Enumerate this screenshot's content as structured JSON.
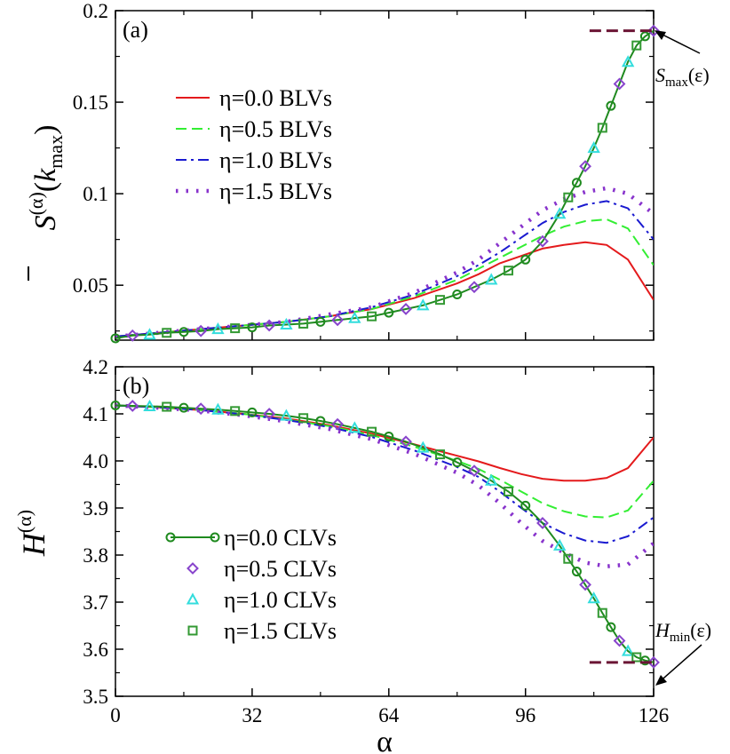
{
  "chart_data": [
    {
      "id": "a",
      "panel_label": "(a)",
      "type": "line",
      "xlabel": "α",
      "ylabel": "S̄(α)(kmax)",
      "ylabel_parts": {
        "main": "S",
        "sup": "(α)",
        "paren_open": "(",
        "k": "k",
        "sub": "max",
        "paren_close": ")"
      },
      "xlim": [
        0,
        126
      ],
      "ylim": [
        0.02,
        0.2
      ],
      "yticks": [
        0.05,
        0.1,
        0.15,
        0.2
      ],
      "ytick_labels": [
        "0.05",
        "0.1",
        "0.15",
        "0.2"
      ],
      "legend_position": "upper-left",
      "annotation": {
        "text": "S",
        "sub": "max",
        "suffix": "(ε)",
        "value": 0.189
      },
      "series": [
        {
          "name": "η=0.0 BLVs",
          "style": "solid",
          "color": "#e41a1c",
          "x": [
            0,
            10,
            20,
            30,
            40,
            50,
            60,
            70,
            80,
            85,
            90,
            95,
            100,
            105,
            110,
            115,
            120,
            126
          ],
          "y": [
            0.022,
            0.024,
            0.026,
            0.028,
            0.03,
            0.033,
            0.037,
            0.043,
            0.051,
            0.056,
            0.062,
            0.066,
            0.07,
            0.072,
            0.0735,
            0.072,
            0.064,
            0.042
          ]
        },
        {
          "name": "η=0.5 BLVs",
          "style": "dashed",
          "color": "#33ee33",
          "x": [
            0,
            10,
            20,
            30,
            40,
            50,
            60,
            70,
            80,
            85,
            90,
            95,
            100,
            105,
            110,
            115,
            120,
            126
          ],
          "y": [
            0.022,
            0.024,
            0.026,
            0.028,
            0.03,
            0.033,
            0.037,
            0.044,
            0.053,
            0.059,
            0.065,
            0.071,
            0.077,
            0.082,
            0.085,
            0.086,
            0.081,
            0.061
          ]
        },
        {
          "name": "η=1.0 BLVs",
          "style": "dashdot",
          "color": "#1a1ad0",
          "x": [
            0,
            10,
            20,
            30,
            40,
            50,
            60,
            70,
            80,
            85,
            90,
            95,
            100,
            105,
            110,
            115,
            120,
            126
          ],
          "y": [
            0.022,
            0.024,
            0.026,
            0.028,
            0.03,
            0.033,
            0.038,
            0.045,
            0.055,
            0.061,
            0.068,
            0.076,
            0.084,
            0.09,
            0.094,
            0.096,
            0.092,
            0.075
          ]
        },
        {
          "name": "η=1.5 BLVs",
          "style": "dotted",
          "color": "#8833cc",
          "x": [
            0,
            10,
            20,
            30,
            40,
            50,
            60,
            70,
            80,
            85,
            90,
            95,
            100,
            105,
            110,
            115,
            120,
            126
          ],
          "y": [
            0.022,
            0.024,
            0.026,
            0.028,
            0.03,
            0.034,
            0.038,
            0.046,
            0.057,
            0.064,
            0.073,
            0.082,
            0.091,
            0.097,
            0.101,
            0.103,
            0.1,
            0.089
          ]
        }
      ]
    },
    {
      "id": "b",
      "panel_label": "(b)",
      "type": "line",
      "xlabel": "α",
      "ylabel": "H(α)",
      "ylabel_parts": {
        "main": "H",
        "sup": "(α)"
      },
      "xlim": [
        0,
        126
      ],
      "ylim": [
        3.5,
        4.2
      ],
      "xticks": [
        0,
        32,
        64,
        96,
        126
      ],
      "xtick_labels": [
        "0",
        "32",
        "64",
        "96",
        "126"
      ],
      "yticks": [
        3.5,
        3.6,
        3.7,
        3.8,
        3.9,
        4.0,
        4.1,
        4.2
      ],
      "ytick_labels": [
        "3.5",
        "3.6",
        "3.7",
        "3.8",
        "3.9",
        "4.0",
        "4.1",
        "4.2"
      ],
      "legend_position": "lower-left",
      "annotation": {
        "text": "H",
        "sub": "min",
        "suffix": "(ε)",
        "value": 3.572
      },
      "series": [
        {
          "name": "η=0.0 BLVs",
          "style": "solid",
          "color": "#e41a1c",
          "x": [
            0,
            10,
            20,
            30,
            40,
            50,
            60,
            70,
            80,
            85,
            90,
            95,
            100,
            105,
            110,
            115,
            120,
            126
          ],
          "y": [
            4.118,
            4.114,
            4.108,
            4.1,
            4.09,
            4.076,
            4.058,
            4.035,
            4.011,
            3.999,
            3.985,
            3.972,
            3.962,
            3.958,
            3.958,
            3.964,
            3.985,
            4.05
          ]
        },
        {
          "name": "η=0.5 BLVs",
          "style": "dashed",
          "color": "#33ee33",
          "x": [
            0,
            10,
            20,
            30,
            40,
            50,
            60,
            70,
            80,
            85,
            90,
            95,
            100,
            105,
            110,
            115,
            120,
            126
          ],
          "y": [
            4.118,
            4.114,
            4.108,
            4.1,
            4.088,
            4.074,
            4.055,
            4.03,
            4.0,
            3.983,
            3.96,
            3.935,
            3.91,
            3.893,
            3.882,
            3.88,
            3.895,
            3.958
          ]
        },
        {
          "name": "η=1.0 BLVs",
          "style": "dashdot",
          "color": "#1a1ad0",
          "x": [
            0,
            10,
            20,
            30,
            40,
            50,
            60,
            70,
            80,
            85,
            90,
            95,
            100,
            105,
            110,
            115,
            120,
            126
          ],
          "y": [
            4.118,
            4.114,
            4.108,
            4.099,
            4.087,
            4.072,
            4.051,
            4.022,
            3.987,
            3.966,
            3.935,
            3.9,
            3.868,
            3.846,
            3.831,
            3.826,
            3.84,
            3.88
          ]
        },
        {
          "name": "η=1.5 BLVs",
          "style": "dotted",
          "color": "#8833cc",
          "x": [
            0,
            10,
            20,
            30,
            40,
            50,
            60,
            70,
            80,
            85,
            90,
            95,
            100,
            105,
            110,
            115,
            120,
            126
          ],
          "y": [
            4.118,
            4.113,
            4.107,
            4.097,
            4.084,
            4.068,
            4.046,
            4.015,
            3.975,
            3.948,
            3.91,
            3.868,
            3.83,
            3.805,
            3.784,
            3.776,
            3.78,
            3.825
          ]
        }
      ]
    }
  ],
  "clv_series": {
    "x": [
      0,
      4,
      8,
      12,
      16,
      20,
      24,
      28,
      32,
      36,
      40,
      44,
      48,
      52,
      56,
      60,
      64,
      68,
      72,
      76,
      80,
      84,
      88,
      92,
      96,
      100,
      104,
      106,
      108,
      110,
      112,
      114,
      116,
      118,
      120,
      122,
      124,
      126
    ],
    "S": [
      0.021,
      0.0225,
      0.023,
      0.024,
      0.0245,
      0.025,
      0.026,
      0.0265,
      0.027,
      0.028,
      0.0285,
      0.029,
      0.03,
      0.031,
      0.032,
      0.033,
      0.035,
      0.037,
      0.039,
      0.042,
      0.045,
      0.049,
      0.053,
      0.058,
      0.064,
      0.074,
      0.089,
      0.098,
      0.106,
      0.115,
      0.125,
      0.136,
      0.148,
      0.16,
      0.172,
      0.181,
      0.186,
      0.189
    ],
    "H": [
      4.118,
      4.117,
      4.116,
      4.115,
      4.113,
      4.111,
      4.109,
      4.106,
      4.103,
      4.1,
      4.096,
      4.091,
      4.085,
      4.078,
      4.07,
      4.062,
      4.052,
      4.041,
      4.028,
      4.014,
      3.997,
      3.979,
      3.958,
      3.935,
      3.905,
      3.868,
      3.82,
      3.792,
      3.765,
      3.737,
      3.708,
      3.677,
      3.647,
      3.618,
      3.596,
      3.583,
      3.576,
      3.572
    ],
    "legend": [
      {
        "name": "η=0.0 CLVs",
        "marker": "circle",
        "color": "#1f8a1f"
      },
      {
        "name": "η=0.5 CLVs",
        "marker": "diamond",
        "color": "#8844cc"
      },
      {
        "name": "η=1.0 CLVs",
        "marker": "triangle",
        "color": "#33dddd"
      },
      {
        "name": "η=1.5 CLVs",
        "marker": "square",
        "color": "#339933"
      }
    ]
  },
  "colors": {
    "axis": "#000000",
    "ref_line": "#6b1535"
  }
}
